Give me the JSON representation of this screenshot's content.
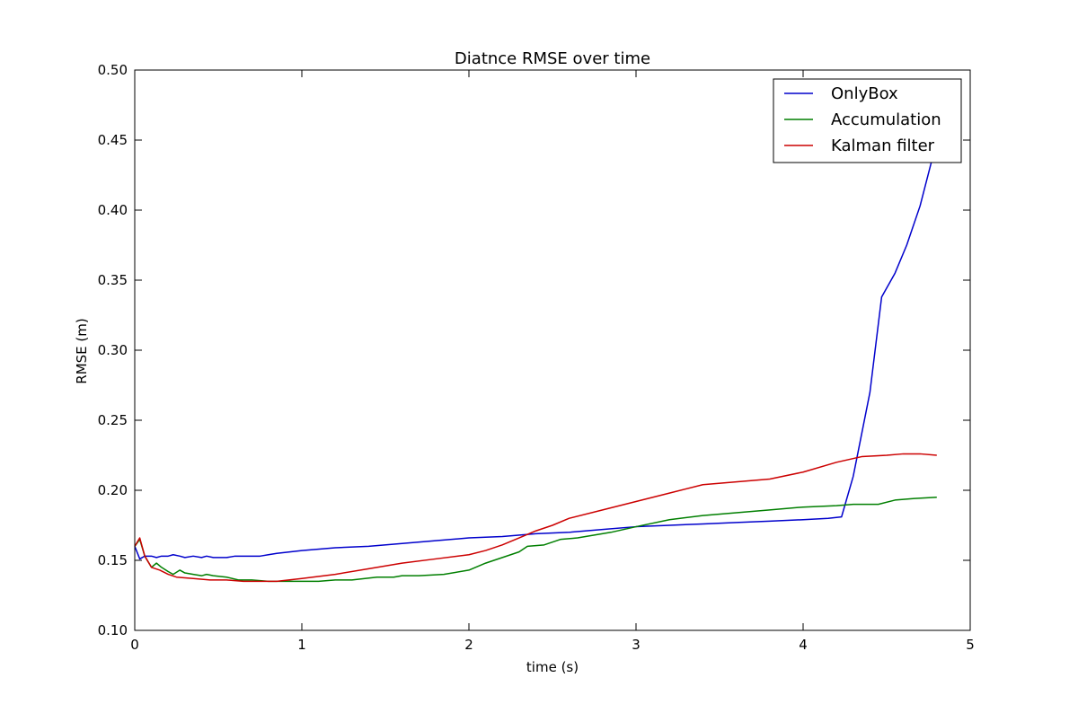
{
  "chart_data": {
    "type": "line",
    "title": "Diatnce RMSE over time",
    "xlabel": "time (s)",
    "ylabel": "RMSE (m)",
    "xlim": [
      0,
      5
    ],
    "ylim": [
      0.1,
      0.5
    ],
    "x_ticks": [
      "0",
      "1",
      "2",
      "3",
      "4",
      "5"
    ],
    "y_ticks": [
      "0.10",
      "0.15",
      "0.20",
      "0.25",
      "0.30",
      "0.35",
      "0.40",
      "0.45",
      "0.50"
    ],
    "grid": false,
    "legend_position": "top-right",
    "series": [
      {
        "name": "OnlyBox",
        "color": "#0000cc",
        "points": [
          [
            0.0,
            0.16
          ],
          [
            0.03,
            0.151
          ],
          [
            0.06,
            0.153
          ],
          [
            0.1,
            0.153
          ],
          [
            0.13,
            0.152
          ],
          [
            0.16,
            0.153
          ],
          [
            0.2,
            0.153
          ],
          [
            0.23,
            0.154
          ],
          [
            0.27,
            0.153
          ],
          [
            0.3,
            0.152
          ],
          [
            0.35,
            0.153
          ],
          [
            0.4,
            0.152
          ],
          [
            0.43,
            0.153
          ],
          [
            0.47,
            0.152
          ],
          [
            0.55,
            0.152
          ],
          [
            0.6,
            0.153
          ],
          [
            0.75,
            0.153
          ],
          [
            0.8,
            0.154
          ],
          [
            0.85,
            0.155
          ],
          [
            1.0,
            0.157
          ],
          [
            1.2,
            0.159
          ],
          [
            1.4,
            0.16
          ],
          [
            1.6,
            0.162
          ],
          [
            1.8,
            0.164
          ],
          [
            2.0,
            0.166
          ],
          [
            2.2,
            0.167
          ],
          [
            2.4,
            0.169
          ],
          [
            2.6,
            0.17
          ],
          [
            2.8,
            0.172
          ],
          [
            3.0,
            0.174
          ],
          [
            3.2,
            0.175
          ],
          [
            3.4,
            0.176
          ],
          [
            3.6,
            0.177
          ],
          [
            3.8,
            0.178
          ],
          [
            4.0,
            0.179
          ],
          [
            4.15,
            0.18
          ],
          [
            4.23,
            0.181
          ],
          [
            4.3,
            0.21
          ],
          [
            4.4,
            0.27
          ],
          [
            4.47,
            0.338
          ],
          [
            4.55,
            0.355
          ],
          [
            4.62,
            0.375
          ],
          [
            4.7,
            0.403
          ],
          [
            4.78,
            0.44
          ]
        ]
      },
      {
        "name": "Accumulation",
        "color": "#007f00",
        "points": [
          [
            0.0,
            0.16
          ],
          [
            0.03,
            0.165
          ],
          [
            0.06,
            0.153
          ],
          [
            0.1,
            0.145
          ],
          [
            0.13,
            0.148
          ],
          [
            0.16,
            0.145
          ],
          [
            0.2,
            0.142
          ],
          [
            0.23,
            0.14
          ],
          [
            0.27,
            0.143
          ],
          [
            0.3,
            0.141
          ],
          [
            0.35,
            0.14
          ],
          [
            0.4,
            0.139
          ],
          [
            0.43,
            0.14
          ],
          [
            0.47,
            0.139
          ],
          [
            0.55,
            0.138
          ],
          [
            0.62,
            0.136
          ],
          [
            0.7,
            0.136
          ],
          [
            0.8,
            0.135
          ],
          [
            0.9,
            0.135
          ],
          [
            1.0,
            0.135
          ],
          [
            1.1,
            0.135
          ],
          [
            1.2,
            0.136
          ],
          [
            1.3,
            0.136
          ],
          [
            1.45,
            0.138
          ],
          [
            1.55,
            0.138
          ],
          [
            1.6,
            0.139
          ],
          [
            1.7,
            0.139
          ],
          [
            1.85,
            0.14
          ],
          [
            2.0,
            0.143
          ],
          [
            2.1,
            0.148
          ],
          [
            2.2,
            0.152
          ],
          [
            2.3,
            0.156
          ],
          [
            2.35,
            0.16
          ],
          [
            2.45,
            0.161
          ],
          [
            2.55,
            0.165
          ],
          [
            2.65,
            0.166
          ],
          [
            2.75,
            0.168
          ],
          [
            2.85,
            0.17
          ],
          [
            3.0,
            0.174
          ],
          [
            3.2,
            0.179
          ],
          [
            3.4,
            0.182
          ],
          [
            3.6,
            0.184
          ],
          [
            3.8,
            0.186
          ],
          [
            4.0,
            0.188
          ],
          [
            4.2,
            0.189
          ],
          [
            4.3,
            0.19
          ],
          [
            4.45,
            0.19
          ],
          [
            4.55,
            0.193
          ],
          [
            4.65,
            0.194
          ],
          [
            4.8,
            0.195
          ]
        ]
      },
      {
        "name": "Kalman filter",
        "color": "#cc0000",
        "points": [
          [
            0.0,
            0.16
          ],
          [
            0.03,
            0.166
          ],
          [
            0.06,
            0.153
          ],
          [
            0.1,
            0.145
          ],
          [
            0.15,
            0.143
          ],
          [
            0.2,
            0.14
          ],
          [
            0.25,
            0.138
          ],
          [
            0.35,
            0.137
          ],
          [
            0.45,
            0.136
          ],
          [
            0.55,
            0.136
          ],
          [
            0.65,
            0.135
          ],
          [
            0.75,
            0.135
          ],
          [
            0.85,
            0.135
          ],
          [
            1.0,
            0.137
          ],
          [
            1.2,
            0.14
          ],
          [
            1.4,
            0.144
          ],
          [
            1.6,
            0.148
          ],
          [
            1.8,
            0.151
          ],
          [
            2.0,
            0.154
          ],
          [
            2.1,
            0.157
          ],
          [
            2.2,
            0.161
          ],
          [
            2.3,
            0.166
          ],
          [
            2.4,
            0.171
          ],
          [
            2.5,
            0.175
          ],
          [
            2.6,
            0.18
          ],
          [
            2.8,
            0.186
          ],
          [
            3.0,
            0.192
          ],
          [
            3.2,
            0.198
          ],
          [
            3.4,
            0.204
          ],
          [
            3.6,
            0.206
          ],
          [
            3.8,
            0.208
          ],
          [
            4.0,
            0.213
          ],
          [
            4.2,
            0.22
          ],
          [
            4.35,
            0.224
          ],
          [
            4.5,
            0.225
          ],
          [
            4.6,
            0.226
          ],
          [
            4.7,
            0.226
          ],
          [
            4.8,
            0.225
          ]
        ]
      }
    ]
  }
}
